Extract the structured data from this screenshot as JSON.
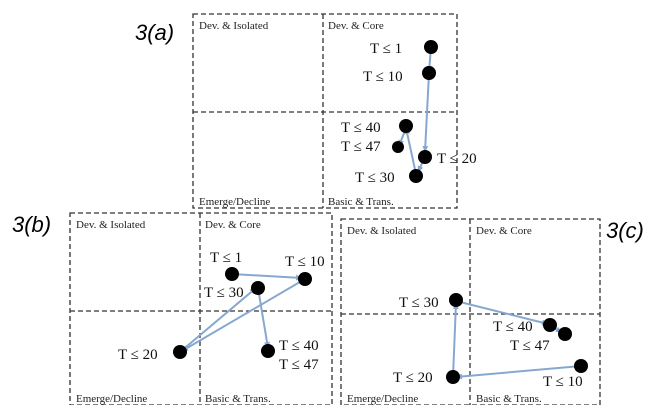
{
  "panels": [
    {
      "id": "a",
      "label": "3(a)",
      "quadrants": {
        "top_left": "Dev. & Isolated",
        "top_right": "Dev. & Core",
        "bottom_left": "Emerge/Decline",
        "bottom_right": "Basic & Trans."
      },
      "points": [
        {
          "label": "T ≤ 1"
        },
        {
          "label": "T ≤ 10"
        },
        {
          "label": "T ≤ 20"
        },
        {
          "label": "T ≤ 30"
        },
        {
          "label": "T ≤ 40"
        },
        {
          "label": "T ≤ 47"
        }
      ]
    },
    {
      "id": "b",
      "label": "3(b)",
      "quadrants": {
        "top_left": "Dev. & Isolated",
        "top_right": "Dev. & Core",
        "bottom_left": "Emerge/Decline",
        "bottom_right": "Basic & Trans."
      },
      "points": [
        {
          "label": "T ≤ 1"
        },
        {
          "label": "T ≤ 10"
        },
        {
          "label": "T ≤ 20"
        },
        {
          "label": "T ≤ 30"
        },
        {
          "label": "T ≤ 40"
        },
        {
          "label": "T ≤ 47"
        }
      ]
    },
    {
      "id": "c",
      "label": "3(c)",
      "quadrants": {
        "top_left": "Dev. & Isolated",
        "top_right": "Dev. & Core",
        "bottom_left": "Emerge/Decline",
        "bottom_right": "Basic & Trans."
      },
      "points": [
        {
          "label": "T ≤ 10"
        },
        {
          "label": "T ≤ 20"
        },
        {
          "label": "T ≤ 30"
        },
        {
          "label": "T ≤ 40"
        },
        {
          "label": "T ≤ 47"
        }
      ]
    }
  ],
  "colors": {
    "trajectory": "#86a8cf",
    "dot": "#000000",
    "frame": "#333333"
  }
}
